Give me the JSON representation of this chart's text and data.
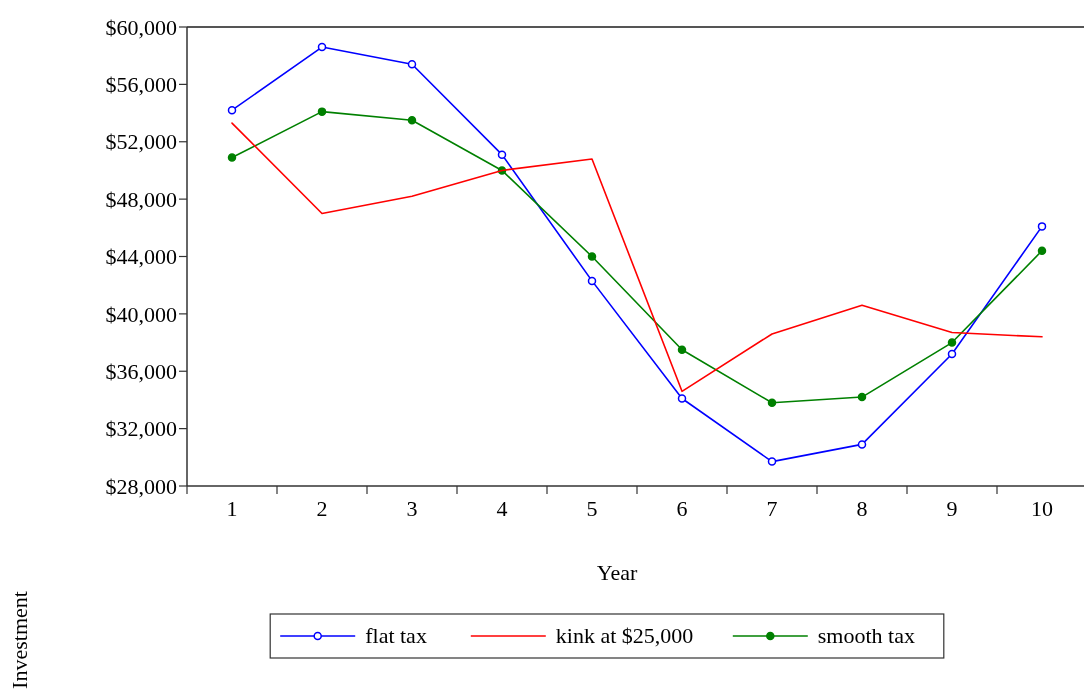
{
  "chart_data": {
    "type": "line",
    "xlabel": "Year",
    "ylabel": "Investment",
    "categories": [
      "1",
      "2",
      "3",
      "4",
      "5",
      "6",
      "7",
      "8",
      "9",
      "10"
    ],
    "series": [
      {
        "name": "flat tax",
        "color": "#0000ff",
        "marker": "circle",
        "values": [
          54200,
          58600,
          57400,
          51100,
          42300,
          34100,
          29700,
          30900,
          37200,
          46100
        ]
      },
      {
        "name": "kink at $25,000",
        "color": "#ff0000",
        "marker": "none",
        "values": [
          53300,
          47000,
          48200,
          50000,
          50800,
          34600,
          38600,
          40600,
          38700,
          38400
        ]
      },
      {
        "name": "smooth tax",
        "color": "#008000",
        "marker": "circle",
        "values": [
          50900,
          54100,
          53500,
          50000,
          44000,
          37500,
          33800,
          34200,
          38000,
          44400
        ]
      }
    ],
    "ylim": [
      28000,
      60000
    ],
    "yticks": [
      {
        "value": 28000,
        "label": "$28,000"
      },
      {
        "value": 32000,
        "label": "$32,000"
      },
      {
        "value": 36000,
        "label": "$36,000"
      },
      {
        "value": 40000,
        "label": "$40,000"
      },
      {
        "value": 44000,
        "label": "$44,000"
      },
      {
        "value": 48000,
        "label": "$48,000"
      },
      {
        "value": 52000,
        "label": "$52,000"
      },
      {
        "value": 56000,
        "label": "$56,000"
      },
      {
        "value": 60000,
        "label": "$60,000"
      }
    ],
    "grid": false,
    "legend": "bottom",
    "line_style": "solid"
  }
}
